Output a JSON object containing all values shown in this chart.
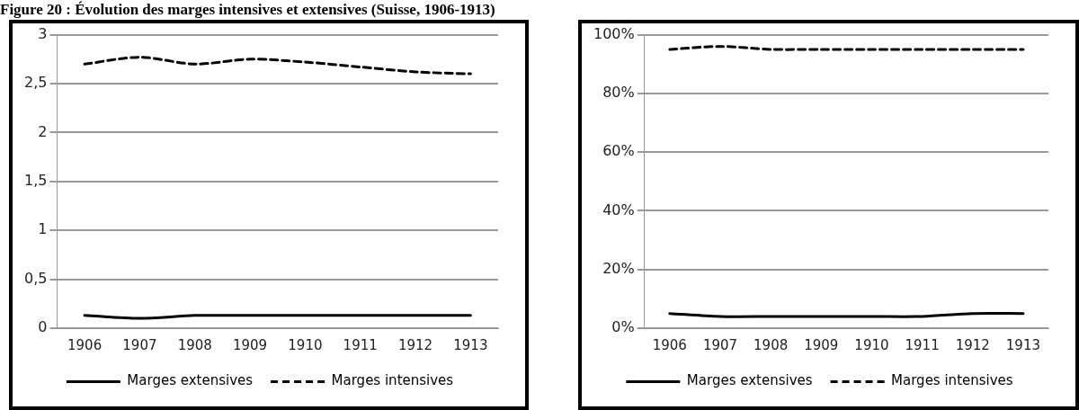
{
  "chart_data": [
    {
      "type": "line",
      "title": "Figure 20 : Évolution des marges intensives et extensives (Suisse, 1906-1913)",
      "categories": [
        "1906",
        "1907",
        "1908",
        "1909",
        "1910",
        "1911",
        "1912",
        "1913"
      ],
      "series": [
        {
          "name": "Marges extensives",
          "color": "#000000",
          "line_style": "solid",
          "values": [
            0.13,
            0.1,
            0.13,
            0.13,
            0.13,
            0.13,
            0.13,
            0.13
          ]
        },
        {
          "name": "Marges intensives",
          "color": "#000000",
          "line_style": "dashed",
          "values": [
            2.7,
            2.77,
            2.7,
            2.75,
            2.72,
            2.67,
            2.62,
            2.6
          ]
        }
      ],
      "ylim": [
        0,
        3
      ],
      "yticks": [
        {
          "value": 0,
          "label": "0"
        },
        {
          "value": 0.5,
          "label": "0,5"
        },
        {
          "value": 1,
          "label": "1"
        },
        {
          "value": 1.5,
          "label": "1,5"
        },
        {
          "value": 2,
          "label": "2"
        },
        {
          "value": 2.5,
          "label": "2,5"
        },
        {
          "value": 3,
          "label": "3"
        }
      ],
      "grid": "y",
      "legend": "bottom",
      "marker": "none"
    },
    {
      "type": "line",
      "categories": [
        "1906",
        "1907",
        "1908",
        "1909",
        "1910",
        "1911",
        "1912",
        "1913"
      ],
      "series": [
        {
          "name": "Marges extensives",
          "color": "#000000",
          "line_style": "solid",
          "values": [
            5,
            4,
            4,
            4,
            4,
            4,
            5,
            5
          ]
        },
        {
          "name": "Marges intensives",
          "color": "#000000",
          "line_style": "dashed",
          "values": [
            95,
            96,
            95,
            95,
            95,
            95,
            95,
            95
          ]
        }
      ],
      "ylim": [
        0,
        100
      ],
      "yticks": [
        {
          "value": 0,
          "label": "0%"
        },
        {
          "value": 20,
          "label": "20%"
        },
        {
          "value": 40,
          "label": "40%"
        },
        {
          "value": 60,
          "label": "60%"
        },
        {
          "value": 80,
          "label": "80%"
        },
        {
          "value": 100,
          "label": "100%"
        }
      ],
      "grid": "y",
      "legend": "bottom",
      "marker": "none"
    }
  ]
}
